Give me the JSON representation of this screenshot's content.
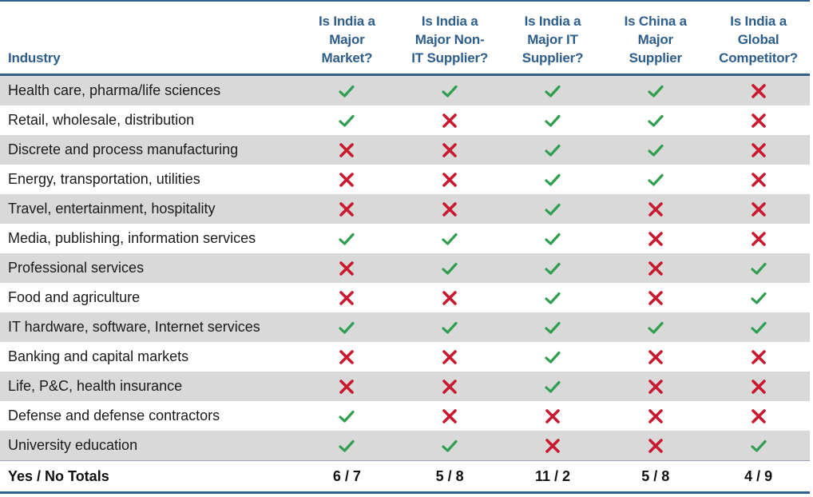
{
  "table": {
    "headers": [
      "Industry",
      "Is India a Major Market?",
      "Is India a Major Non-IT Supplier?",
      "Is India a Major IT Supplier?",
      "Is China a Major Supplier",
      "Is India a Global Competitor?"
    ],
    "header_lines": [
      [
        "Industry"
      ],
      [
        "Is India a",
        "Major",
        "Market?"
      ],
      [
        "Is India a",
        "Major Non-",
        "IT Supplier?"
      ],
      [
        "Is India a",
        "Major IT",
        "Supplier?"
      ],
      [
        "Is China a",
        "Major",
        "Supplier"
      ],
      [
        "Is India a",
        "Global",
        "Competitor?"
      ]
    ],
    "rows": [
      {
        "industry": "Health care, pharma/life sciences",
        "values": [
          "yes",
          "yes",
          "yes",
          "yes",
          "no"
        ]
      },
      {
        "industry": "Retail, wholesale, distribution",
        "values": [
          "yes",
          "no",
          "yes",
          "yes",
          "no"
        ]
      },
      {
        "industry": "Discrete and process manufacturing",
        "values": [
          "no",
          "no",
          "yes",
          "yes",
          "no"
        ]
      },
      {
        "industry": "Energy, transportation, utilities",
        "values": [
          "no",
          "no",
          "yes",
          "yes",
          "no"
        ]
      },
      {
        "industry": "Travel, entertainment, hospitality",
        "values": [
          "no",
          "no",
          "yes",
          "no",
          "no"
        ]
      },
      {
        "industry": "Media, publishing, information services",
        "values": [
          "yes",
          "yes",
          "yes",
          "no",
          "no"
        ]
      },
      {
        "industry": "Professional services",
        "values": [
          "no",
          "yes",
          "yes",
          "no",
          "yes"
        ]
      },
      {
        "industry": "Food and agriculture",
        "values": [
          "no",
          "no",
          "yes",
          "no",
          "yes"
        ]
      },
      {
        "industry": "IT hardware, software, Internet services",
        "values": [
          "yes",
          "yes",
          "yes",
          "yes",
          "yes"
        ]
      },
      {
        "industry": "Banking and capital markets",
        "values": [
          "no",
          "no",
          "yes",
          "no",
          "no"
        ]
      },
      {
        "industry": "Life, P&C, health insurance",
        "values": [
          "no",
          "no",
          "yes",
          "no",
          "no"
        ]
      },
      {
        "industry": "Defense and defense contractors",
        "values": [
          "yes",
          "no",
          "no",
          "no",
          "no"
        ]
      },
      {
        "industry": "University education",
        "values": [
          "yes",
          "yes",
          "no",
          "no",
          "yes"
        ]
      }
    ],
    "totals": {
      "label": "Yes / No Totals",
      "values": [
        "6 / 7",
        "5 / 8",
        "11 / 2",
        "5 / 8",
        "4 / 9"
      ]
    }
  },
  "colors": {
    "header_text": "#2e5e8c",
    "rule": "#2f5f8a",
    "shaded_row": "#d9d9d9",
    "check": "#2f9e4f",
    "cross": "#c8192e"
  },
  "icons": {
    "yes": "check-icon",
    "no": "cross-icon"
  }
}
